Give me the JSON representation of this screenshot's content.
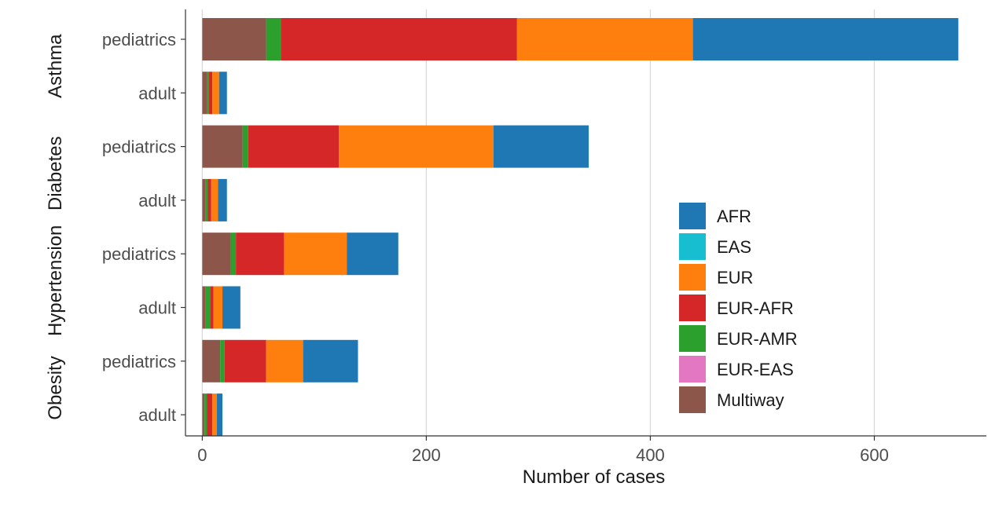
{
  "chart_data": {
    "type": "bar",
    "orientation": "horizontal",
    "stacked": true,
    "xlabel": "Number of cases",
    "ylabel": "",
    "xlim": [
      -15,
      700
    ],
    "xticks": [
      0,
      200,
      400,
      600
    ],
    "grid": true,
    "legend_position": "bottom-right",
    "groups": [
      {
        "label": "Asthma",
        "categories": [
          "pediatrics",
          "adult"
        ]
      },
      {
        "label": "Diabetes",
        "categories": [
          "pediatrics",
          "adult"
        ]
      },
      {
        "label": "Hypertension",
        "categories": [
          "pediatrics",
          "adult"
        ]
      },
      {
        "label": "Obesity",
        "categories": [
          "pediatrics",
          "adult"
        ]
      }
    ],
    "rows": [
      {
        "group": "Asthma",
        "category": "pediatrics"
      },
      {
        "group": "Asthma",
        "category": "adult"
      },
      {
        "group": "Diabetes",
        "category": "pediatrics"
      },
      {
        "group": "Diabetes",
        "category": "adult"
      },
      {
        "group": "Hypertension",
        "category": "pediatrics"
      },
      {
        "group": "Hypertension",
        "category": "adult"
      },
      {
        "group": "Obesity",
        "category": "pediatrics"
      },
      {
        "group": "Obesity",
        "category": "adult"
      }
    ],
    "series": [
      {
        "name": "Multiway",
        "color": "#8C564B",
        "values": [
          57,
          4,
          36,
          3,
          25,
          3,
          16,
          2
        ]
      },
      {
        "name": "EUR-AMR",
        "color": "#2CA02C",
        "values": [
          13,
          2,
          5,
          2,
          5,
          4,
          4,
          2
        ]
      },
      {
        "name": "EUR-AFR",
        "color": "#D62728",
        "values": [
          211,
          3,
          81,
          3,
          43,
          3,
          37,
          5
        ]
      },
      {
        "name": "EUR",
        "color": "#FF7F0E",
        "values": [
          157,
          6,
          138,
          6,
          56,
          8,
          33,
          4
        ]
      },
      {
        "name": "AFR",
        "color": "#1F77B4",
        "values": [
          237,
          7,
          85,
          8,
          46,
          16,
          49,
          5
        ]
      },
      {
        "name": "EAS",
        "color": "#17BECF",
        "values": [
          0,
          0,
          0,
          0,
          0,
          0,
          0,
          0
        ]
      },
      {
        "name": "EUR-EAS",
        "color": "#E377C2",
        "values": [
          0,
          0,
          0,
          0,
          0,
          0,
          0,
          0
        ]
      }
    ],
    "legend_order": [
      "AFR",
      "EAS",
      "EUR",
      "EUR-AFR",
      "EUR-AMR",
      "EUR-EAS",
      "Multiway"
    ]
  }
}
